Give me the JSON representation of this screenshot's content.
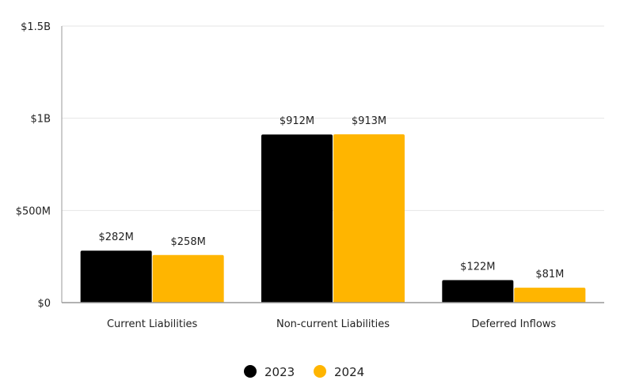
{
  "chart_data": {
    "type": "bar",
    "title": "",
    "xlabel": "",
    "ylabel": "",
    "categories": [
      "Current Liabilities",
      "Non-current Liabilities",
      "Deferred Inflows"
    ],
    "series": [
      {
        "name": "2023",
        "values": [
          282,
          912,
          122
        ],
        "labels": [
          "$282M",
          "$912M",
          "$122M"
        ],
        "color": "#000000"
      },
      {
        "name": "2024",
        "values": [
          258,
          913,
          81
        ],
        "labels": [
          "$258M",
          "$913M",
          "$81M"
        ],
        "color": "#FFB500"
      }
    ],
    "units": "millions USD",
    "ylim": [
      0,
      1500
    ],
    "yticks": [
      0,
      500,
      1000,
      1500
    ],
    "ytick_labels": [
      "$0",
      "$500M",
      "$1B",
      "$1.5B"
    ],
    "grid": true,
    "legend_position": "bottom"
  }
}
